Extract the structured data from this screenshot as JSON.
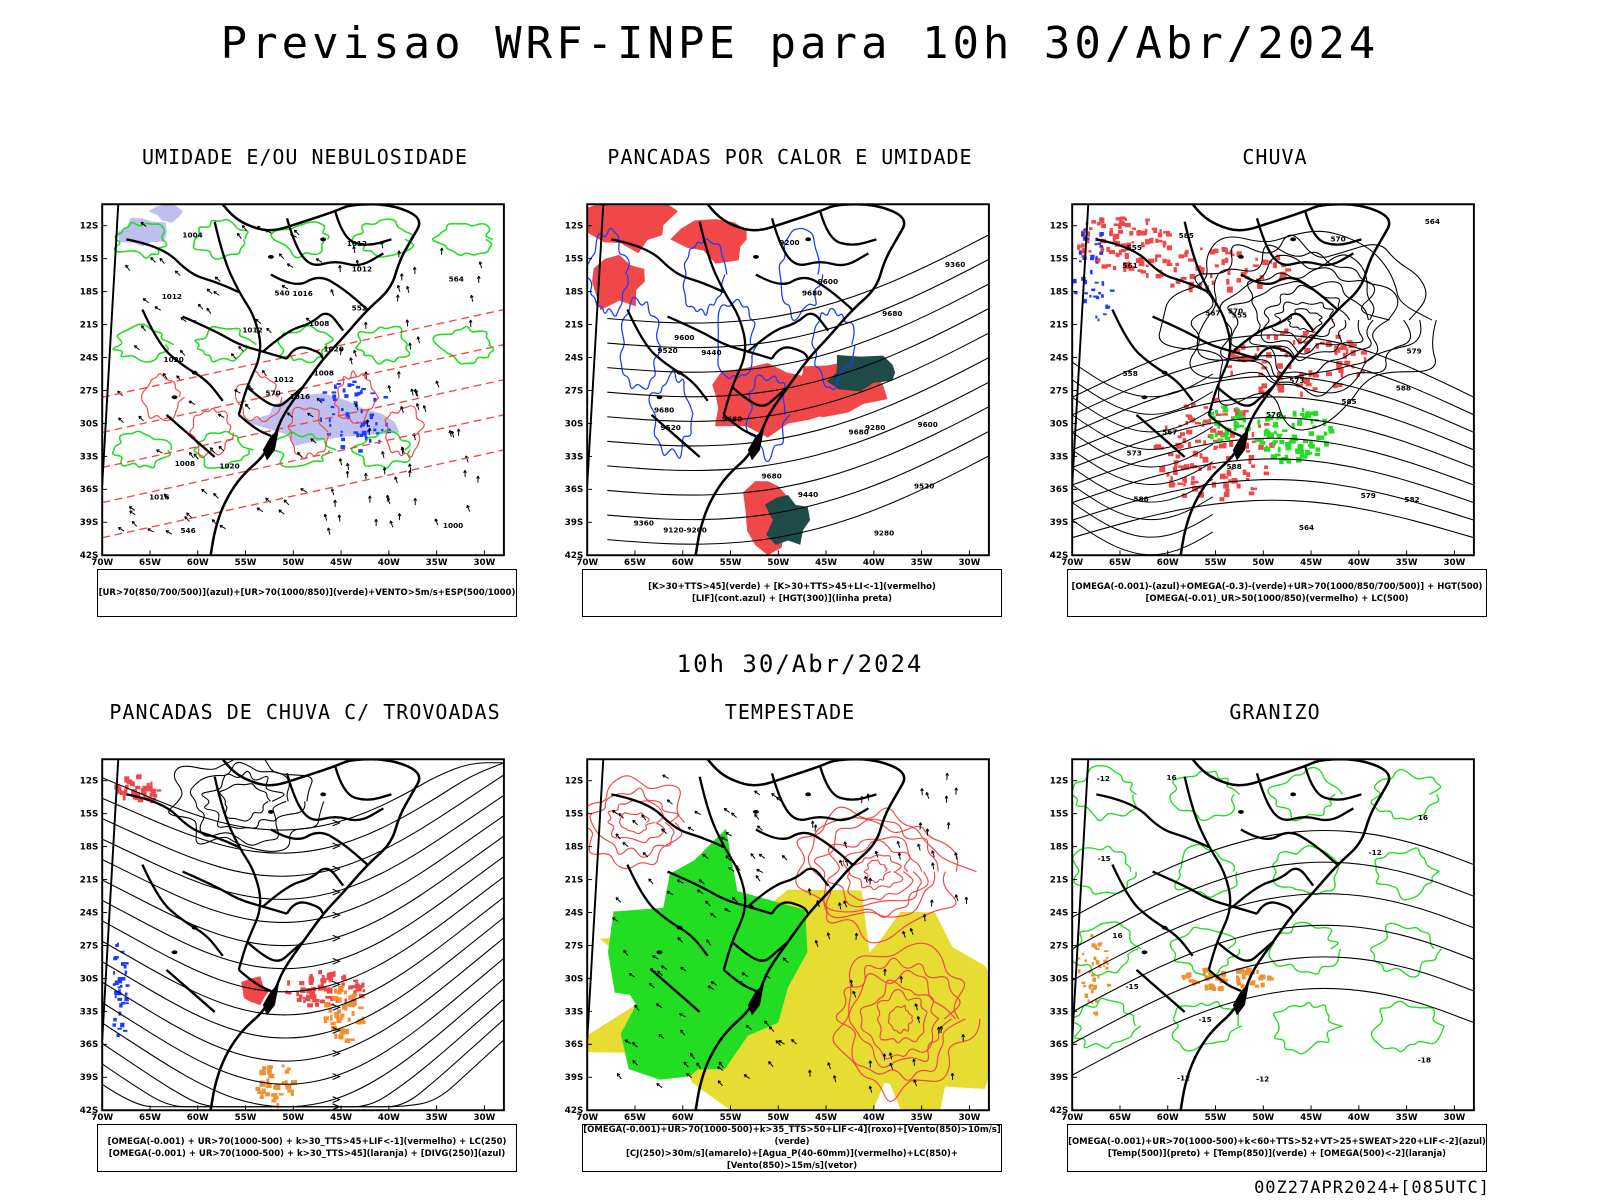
{
  "title": "Previsao WRF-INPE  para 10h 30/Abr/2024",
  "subtitle": "10h 30/Abr/2024",
  "footer": "00Z27APR2024+[085UTC]",
  "axes": {
    "lat_labels": [
      "12S",
      "15S",
      "18S",
      "21S",
      "24S",
      "27S",
      "30S",
      "33S",
      "36S",
      "39S",
      "42S"
    ],
    "lon_labels": [
      "70W",
      "65W",
      "60W",
      "55W",
      "50W",
      "45W",
      "40W",
      "35W",
      "30W"
    ]
  },
  "colors": {
    "green": "#22dd22",
    "red": "#f04848",
    "blue": "#1a3cff",
    "lavender": "#b8b8ee",
    "orange": "#f09030",
    "yellow": "#e6dc32",
    "darkteal": "#1e4a48"
  },
  "panels": [
    {
      "title": "UMIDADE E/OU NEBULOSIDADE",
      "caption": [
        "[UR>70(850/700/500)](azul)+[UR>70(1000/850)](verde)+VENTO>5m/s+ESP(500/1000)"
      ],
      "labels": [
        "1016",
        "1012",
        "1012",
        "1016",
        "1020",
        "1020",
        "1012",
        "1016",
        "1012",
        "1008",
        "1004",
        "1000",
        "1020",
        "564",
        "570",
        "552",
        "546",
        "540",
        "1008",
        "1008",
        "1012"
      ]
    },
    {
      "title": "PANCADAS POR CALOR E UMIDADE",
      "caption": [
        "[K>30+TTS>45](verde) + [K>30+TTS>45+LI<-1](vermelho)",
        "[LIF](cont.azul) + [HGT(300)](linha preta)"
      ],
      "labels": [
        "9680",
        "9680",
        "9680",
        "9680",
        "9600",
        "9680",
        "9680",
        "9520",
        "9440",
        "9600",
        "9520",
        "9360",
        "9280",
        "9440",
        "9360",
        "9280",
        "9600",
        "9520",
        "9120-9200",
        "9200"
      ]
    },
    {
      "title": "CHUVA",
      "caption": [
        "[OMEGA(-0.001)-(azul)+OMEGA(-0.3)-(verde)+UR>70(1000/850/700/500)] + HGT(500)",
        "[OMEGA(-0.01)_UR>50(1000/850)(vermelho) + LC(500)"
      ],
      "labels": [
        "585",
        "588",
        "588",
        "585",
        "555",
        "579",
        "573",
        "570",
        "567",
        "564",
        "561",
        "558",
        "555",
        "582",
        "588",
        "579",
        "576",
        "573",
        "570",
        "567",
        "564"
      ]
    },
    {
      "title": "PANCADAS DE CHUVA C/ TROVOADAS",
      "caption": [
        "[OMEGA(-0.001) + UR>70(1000-500) + k>30_TTS>45+LIF<-1](vermelho) + LC(250)",
        "[OMEGA(-0.001) + UR>70(1000-500) + k>30_TTS>45](laranja) + [DIVG(250)](azul)"
      ],
      "labels": []
    },
    {
      "title": "TEMPESTADE",
      "caption": [
        "[OMEGA(-0.001)+UR>70(1000-500)+k>35_TTS>50+LIF<-4](roxo)+[Vento(850)>10m/s](verde)",
        "[CJ(250)>30m/s](amarelo)+[Agua_P(40-60mm)](vermelho)+LC(850)+[Vento(850)>15m/s](vetor)"
      ],
      "labels": []
    },
    {
      "title": "GRANIZO",
      "caption": [
        "[OMEGA(-0.001)+UR>70(1000-500)+k<60+TTS>52+VT>25+SWEAT>220+LIF<-2](azul)",
        "[Temp(500)](preto) + [Temp(850)](verde) + [OMEGA(500)<-2](laranja)"
      ],
      "labels": [
        "-12",
        "-12",
        "-12",
        "-15",
        "-15",
        "-18",
        "-12",
        "-15",
        "16",
        "16",
        "16"
      ]
    }
  ]
}
